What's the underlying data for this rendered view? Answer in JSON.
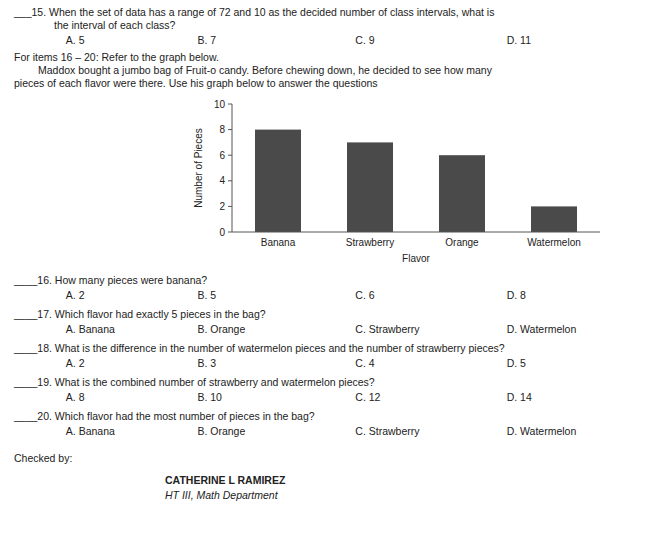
{
  "chart_data": {
    "type": "bar",
    "categories": [
      "Banana",
      "Strawberry",
      "Orange",
      "Watermelon"
    ],
    "values": [
      8,
      7,
      6,
      2
    ],
    "color": "#4a4a4a",
    "xlabel": "Flavor",
    "ylabel": "Number of Pieces",
    "ylim": [
      0,
      10
    ],
    "yticks": [
      0,
      2,
      4,
      6,
      8,
      10
    ],
    "grid": false,
    "annotations": [
      "___15. When the set of data has a range of 72 and 10 as the decided number of class intervals, what is",
      "the interval of each class?",
      [
        "A. 5",
        "B. 7",
        "C. 9",
        "D. 11"
      ],
      "For items 16 – 20: Refer to the graph below.",
      "Maddox bought a jumbo bag of Fruit-o candy. Before chewing down, he decided to see how many",
      "pieces of each flavor were there. Use his graph below to answer the questions",
      "____16. How many pieces were banana?",
      [
        "A. 2",
        "B. 5",
        "C. 6",
        "D. 8"
      ],
      "____17. Which flavor had exactly 5 pieces in the bag?",
      [
        "A. Banana",
        "B. Orange",
        "C. Strawberry",
        "D. Watermelon"
      ],
      "____18. What is the difference in the number of watermelon pieces and the number of strawberry pieces?",
      [
        "A. 2",
        "B. 3",
        "C. 4",
        "D. 5"
      ],
      "____19. What is the combined number of strawberry and watermelon pieces?",
      [
        "A. 8",
        "B. 10",
        "C. 12",
        "D. 14"
      ],
      "____20. Which flavor had the most number of pieces in the bag?",
      [
        "A. Banana",
        "B. Orange",
        "C. Strawberry",
        "D. Watermelon"
      ],
      "Checked by:",
      "CATHERINE L RAMIREZ",
      "HT III, Math Department"
    ]
  }
}
